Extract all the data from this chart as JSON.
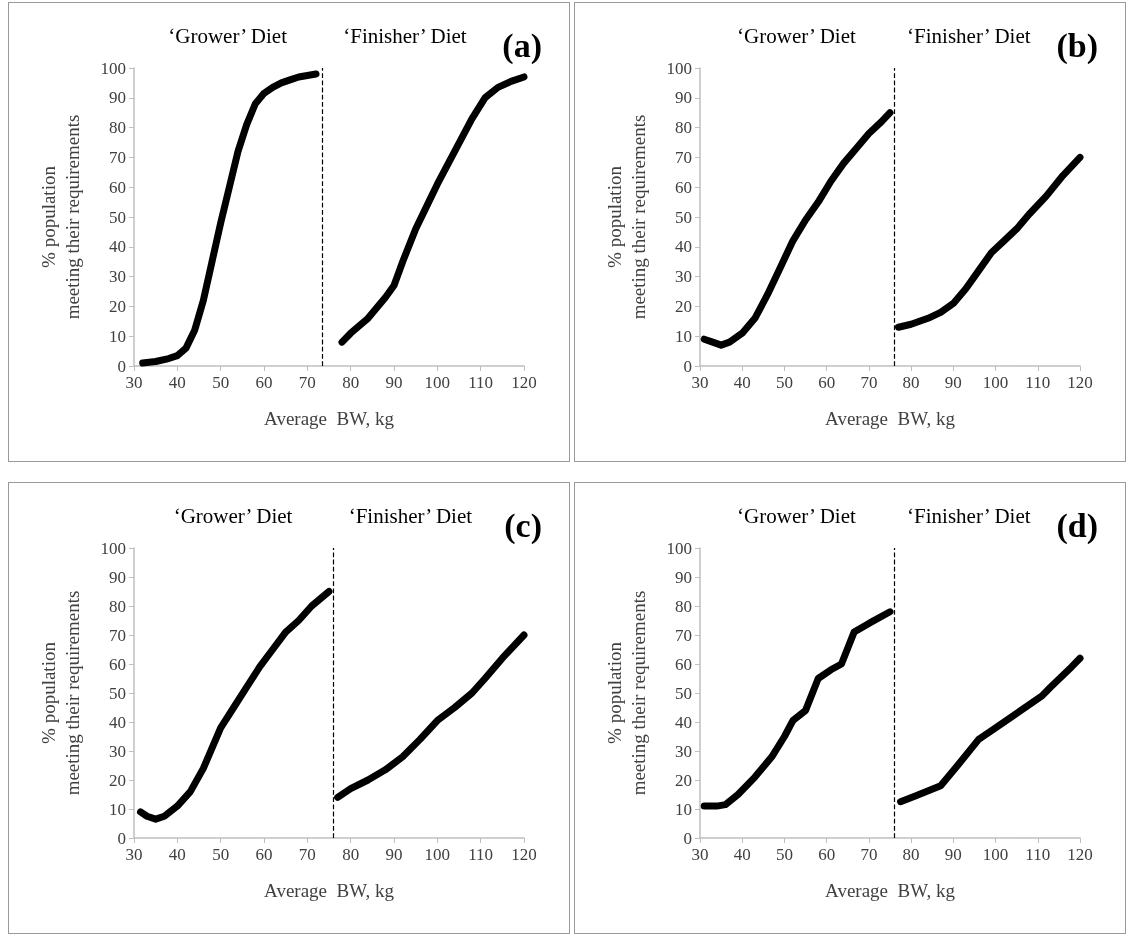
{
  "chart_data": [
    {
      "type": "line",
      "title": "(a)",
      "xlabel": "Average  BW, kg",
      "ylabel": "% population\nmeeting their requirements",
      "annotations": [
        "‘Grower’ Diet",
        "‘Finisher’ Diet"
      ],
      "xlim": [
        30,
        120
      ],
      "xticks": [
        30,
        40,
        50,
        60,
        70,
        80,
        90,
        100,
        110,
        120
      ],
      "ylim": [
        0,
        100
      ],
      "yticks": [
        0,
        10,
        20,
        30,
        40,
        50,
        60,
        70,
        80,
        90,
        100
      ],
      "grid": false,
      "marker": "none",
      "line_style": "solid",
      "ref_lines": [
        {
          "axis": "x",
          "value": 73.5,
          "line_style": "dashed",
          "color": "#000000"
        }
      ],
      "series": [
        {
          "color": "#000000",
          "x": [
            32,
            35,
            38,
            40,
            42,
            44,
            46,
            48,
            50,
            52,
            54,
            56,
            58,
            60,
            62,
            64,
            66,
            68,
            70,
            72
          ],
          "values": [
            1,
            1.5,
            2.5,
            3.5,
            6,
            12,
            22,
            35,
            48,
            60,
            72,
            81,
            88,
            91.5,
            93.5,
            95,
            96,
            97,
            97.5,
            98
          ]
        },
        {
          "color": "#000000",
          "x": [
            78,
            80,
            84,
            88,
            90,
            92,
            95,
            98,
            100,
            104,
            108,
            111,
            114,
            117,
            120
          ],
          "values": [
            8,
            11,
            16,
            23,
            27,
            35,
            46,
            55,
            61,
            72,
            83,
            90,
            93.5,
            95.5,
            97
          ]
        }
      ]
    },
    {
      "type": "line",
      "title": "(b)",
      "xlabel": "Average  BW, kg",
      "ylabel": "% population\nmeeting their requirements",
      "annotations": [
        "‘Grower’ Diet",
        "‘Finisher’ Diet"
      ],
      "xlim": [
        30,
        120
      ],
      "xticks": [
        30,
        40,
        50,
        60,
        70,
        80,
        90,
        100,
        110,
        120
      ],
      "ylim": [
        0,
        100
      ],
      "yticks": [
        0,
        10,
        20,
        30,
        40,
        50,
        60,
        70,
        80,
        90,
        100
      ],
      "grid": false,
      "marker": "none",
      "line_style": "solid",
      "ref_lines": [
        {
          "axis": "x",
          "value": 76,
          "line_style": "dashed",
          "color": "#000000"
        }
      ],
      "series": [
        {
          "color": "#000000",
          "x": [
            31,
            33,
            35,
            37,
            40,
            43,
            46,
            49,
            52,
            55,
            58,
            61,
            64,
            67,
            70,
            73,
            75
          ],
          "values": [
            9,
            8,
            7,
            8,
            11,
            16,
            24,
            33,
            42,
            49,
            55,
            62,
            68,
            73,
            78,
            82,
            85
          ]
        },
        {
          "color": "#000000",
          "x": [
            77,
            80,
            84,
            87,
            90,
            93,
            96,
            99,
            102,
            105,
            108,
            112,
            116,
            120
          ],
          "values": [
            13,
            14,
            16,
            18,
            21,
            26,
            32,
            38,
            42,
            46,
            51,
            57,
            64,
            70
          ]
        }
      ]
    },
    {
      "type": "line",
      "title": "(c)",
      "xlabel": "Average  BW, kg",
      "ylabel": "% population\nmeeting their requirements",
      "annotations": [
        "‘Grower’ Diet",
        "‘Finisher’ Diet"
      ],
      "xlim": [
        30,
        120
      ],
      "xticks": [
        30,
        40,
        50,
        60,
        70,
        80,
        90,
        100,
        110,
        120
      ],
      "ylim": [
        0,
        100
      ],
      "yticks": [
        0,
        10,
        20,
        30,
        40,
        50,
        60,
        70,
        80,
        90,
        100
      ],
      "grid": false,
      "marker": "none",
      "line_style": "solid",
      "ref_lines": [
        {
          "axis": "x",
          "value": 76,
          "line_style": "dashed",
          "color": "#000000"
        }
      ],
      "series": [
        {
          "color": "#000000",
          "x": [
            31.5,
            33,
            35,
            37,
            40,
            43,
            46,
            48,
            50,
            53,
            56,
            59,
            62,
            65,
            68,
            71,
            75
          ],
          "values": [
            9,
            7.5,
            6.5,
            7.5,
            11,
            16,
            24,
            31,
            38,
            45,
            52,
            59,
            65,
            71,
            75,
            80,
            85
          ]
        },
        {
          "color": "#000000",
          "x": [
            77,
            80,
            84,
            88,
            92,
            96,
            100,
            104,
            108,
            111,
            115,
            120
          ],
          "values": [
            14,
            17,
            20,
            23.5,
            28,
            34,
            40.5,
            45,
            50,
            55,
            62,
            70
          ]
        }
      ]
    },
    {
      "type": "line",
      "title": "(d)",
      "xlabel": "Average  BW, kg",
      "ylabel": "% population\nmeeting their requirements",
      "annotations": [
        "‘Grower’ Diet",
        "‘Finisher’ Diet"
      ],
      "xlim": [
        30,
        120
      ],
      "xticks": [
        30,
        40,
        50,
        60,
        70,
        80,
        90,
        100,
        110,
        120
      ],
      "ylim": [
        0,
        100
      ],
      "yticks": [
        0,
        10,
        20,
        30,
        40,
        50,
        60,
        70,
        80,
        90,
        100
      ],
      "grid": false,
      "marker": "none",
      "line_style": "solid",
      "ref_lines": [
        {
          "axis": "x",
          "value": 76,
          "line_style": "dashed",
          "color": "#000000"
        }
      ],
      "series": [
        {
          "color": "#000000",
          "x": [
            31,
            34,
            36,
            39,
            43,
            47,
            50,
            52,
            55,
            58,
            61,
            63.5,
            66.5,
            70,
            75
          ],
          "values": [
            11,
            11,
            11.5,
            15,
            21,
            28,
            35,
            40.5,
            44,
            55,
            58,
            60,
            71,
            74,
            78
          ]
        },
        {
          "color": "#000000",
          "x": [
            77.5,
            81,
            87,
            91,
            96,
            100,
            105,
            111,
            113,
            118,
            120
          ],
          "values": [
            12.5,
            14.5,
            18,
            25,
            34,
            38,
            43,
            49,
            52,
            59,
            62
          ]
        }
      ]
    }
  ]
}
